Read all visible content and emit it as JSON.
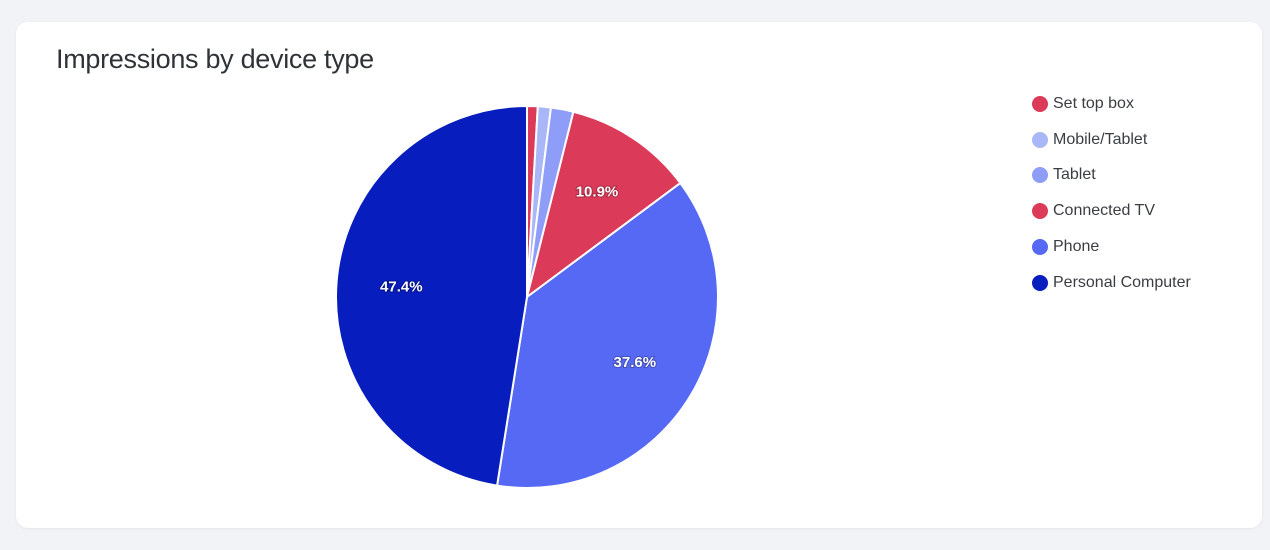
{
  "chart_data": {
    "type": "pie",
    "title": "Impressions by device type",
    "legend_position": "right",
    "slices": [
      {
        "label": "Set top box",
        "value": 0.9,
        "color": "#dc3a59",
        "data_label": ""
      },
      {
        "label": "Mobile/Tablet",
        "value": 1.1,
        "color": "#a9b6f8",
        "data_label": ""
      },
      {
        "label": "Tablet",
        "value": 1.9,
        "color": "#8e9df8",
        "data_label": ""
      },
      {
        "label": "Connected TV",
        "value": 10.9,
        "color": "#dc3a59",
        "data_label": "10.9%"
      },
      {
        "label": "Phone",
        "value": 37.6,
        "color": "#5669f5",
        "data_label": "37.6%"
      },
      {
        "label": "Personal Computer",
        "value": 47.4,
        "color": "#071dbe",
        "data_label": "47.4%"
      }
    ]
  }
}
